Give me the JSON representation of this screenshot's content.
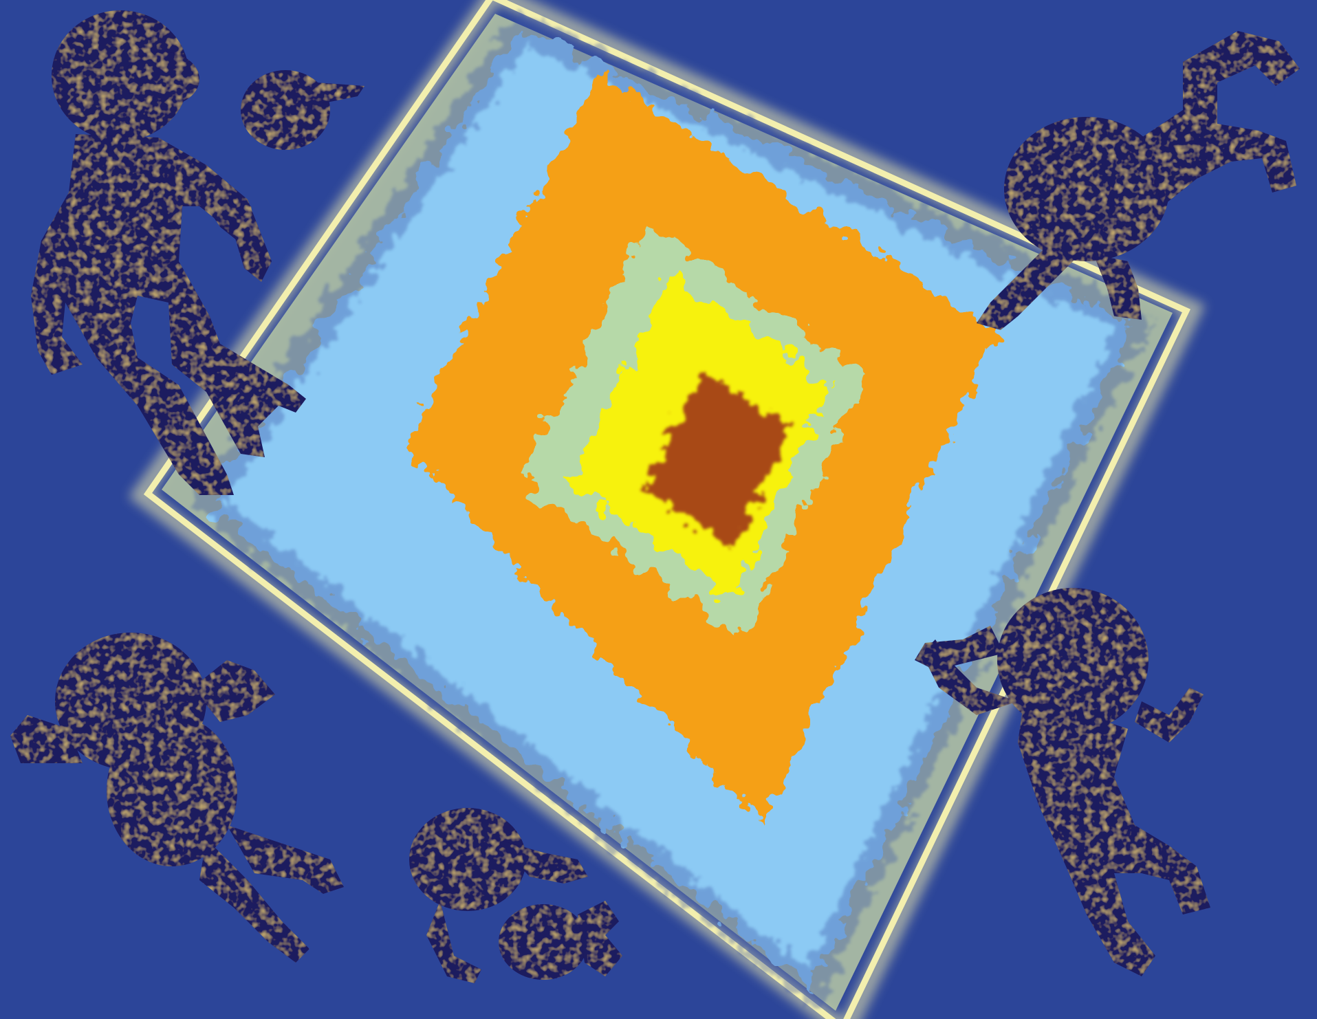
{
  "artwork": {
    "colors": {
      "background": "#2c4599",
      "frame_glow": "#f3efae",
      "frame_band": "#b9c9a4",
      "outer_blue": "#8ccaf4",
      "orange": "#f5a012",
      "pale_green": "#b6d9a8",
      "yellow": "#f7f20d",
      "center": "#a84a18",
      "silhouette": "#1f1a5e",
      "silhouette_texture": "#c08c2c"
    },
    "figures": [
      {
        "name": "monkey-top-left",
        "pose": "leaping"
      },
      {
        "name": "monkey-head-small",
        "pose": "head"
      },
      {
        "name": "monkey-top-right",
        "pose": "upside-down"
      },
      {
        "name": "monkey-bottom-left",
        "pose": "tumbling"
      },
      {
        "name": "monkey-bottom-center",
        "pose": "curled"
      },
      {
        "name": "monkey-bottom-right",
        "pose": "climbing"
      }
    ]
  }
}
